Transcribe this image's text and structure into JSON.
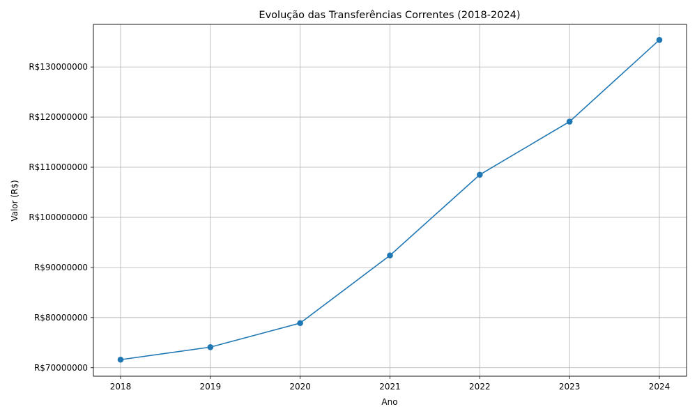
{
  "chart_data": {
    "type": "line",
    "title": "Evolução das Transferências Correntes (2018-2024)",
    "xlabel": "Ano",
    "ylabel": "Valor (R$)",
    "x": [
      "2018",
      "2019",
      "2020",
      "2021",
      "2022",
      "2023",
      "2024"
    ],
    "series": [
      {
        "values": [
          71600000,
          74100000,
          78900000,
          92400000,
          108500000,
          119100000,
          135400000
        ],
        "color": "#1f77b4",
        "marker": "circle"
      }
    ],
    "yticks": [
      70000000,
      80000000,
      90000000,
      100000000,
      110000000,
      120000000,
      130000000
    ],
    "ytick_labels": [
      "R$70000000",
      "R$80000000",
      "R$90000000",
      "R$100000000",
      "R$110000000",
      "R$120000000",
      "R$130000000"
    ],
    "ylim": [
      68300000,
      138500000
    ],
    "grid": true
  }
}
